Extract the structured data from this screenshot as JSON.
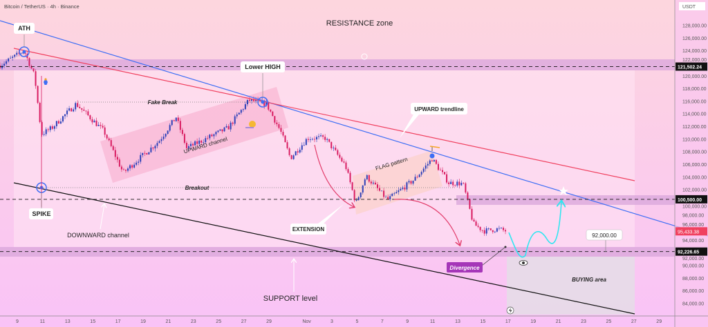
{
  "header": {
    "symbol_title": "Bitcoin / TetherUS · 4h · Binance",
    "currency": "USDT"
  },
  "colors": {
    "up": "#2b3fb8",
    "down": "#d81b60",
    "blue_line": "#3d6ef5",
    "red_line": "#f0405f",
    "black_line": "#111111",
    "cyan_path": "#2ee6f0",
    "band": "#dba8dc",
    "bg_top": "#fdd6de",
    "bg_bottom": "#f9c3f7"
  },
  "chart_data": {
    "type": "candlestick",
    "timeframe": "4h",
    "ylim": [
      83000,
      129500
    ],
    "y_ticks": [
      128000,
      126000,
      124000,
      122000,
      120000,
      118000,
      116000,
      114000,
      112000,
      110000,
      108000,
      106000,
      104000,
      102000,
      100000,
      98000,
      96000,
      94000,
      92000,
      90000,
      88000,
      86000,
      84000
    ],
    "y_tick_labels": [
      "128,000.00",
      "126,000.00",
      "124,000.00",
      "122,000.00",
      "120,000.00",
      "118,000.00",
      "116,000.00",
      "114,000.00",
      "112,000.00",
      "110,000.00",
      "108,000.00",
      "106,000.00",
      "104,000.00",
      "102,000.00",
      "100,000.00",
      "98,000.00",
      "96,000.00",
      "94,000.00",
      "92,000.00",
      "90,000.00",
      "88,000.00",
      "86,000.00",
      "84,000.00"
    ],
    "x_ticks": [
      {
        "date": "10-09",
        "label": "9"
      },
      {
        "date": "10-11",
        "label": "11"
      },
      {
        "date": "10-13",
        "label": "13"
      },
      {
        "date": "10-15",
        "label": "15"
      },
      {
        "date": "10-17",
        "label": "17"
      },
      {
        "date": "10-19",
        "label": "19"
      },
      {
        "date": "10-21",
        "label": "21"
      },
      {
        "date": "10-23",
        "label": "23"
      },
      {
        "date": "10-25",
        "label": "25"
      },
      {
        "date": "10-27",
        "label": "27"
      },
      {
        "date": "10-29",
        "label": "29"
      },
      {
        "date": "11-01",
        "label": "Nov"
      },
      {
        "date": "11-03",
        "label": "3"
      },
      {
        "date": "11-05",
        "label": "5"
      },
      {
        "date": "11-07",
        "label": "7"
      },
      {
        "date": "11-09",
        "label": "9"
      },
      {
        "date": "11-11",
        "label": "11"
      },
      {
        "date": "11-13",
        "label": "13"
      },
      {
        "date": "11-15",
        "label": "15"
      },
      {
        "date": "11-17",
        "label": "17"
      },
      {
        "date": "11-19",
        "label": "19"
      },
      {
        "date": "11-21",
        "label": "21"
      },
      {
        "date": "11-23",
        "label": "23"
      },
      {
        "date": "11-25",
        "label": "25"
      },
      {
        "date": "11-27",
        "label": "27"
      },
      {
        "date": "11-29",
        "label": "29"
      }
    ],
    "price_path": [
      [
        "10-07T15",
        121700
      ],
      [
        "10-09T13",
        124000
      ],
      [
        "10-10T09",
        120000
      ],
      [
        "10-10T22",
        110800
      ],
      [
        "10-11T18",
        111800
      ],
      [
        "10-13T16",
        115600
      ],
      [
        "10-15T21",
        111300
      ],
      [
        "10-17T10",
        104700
      ],
      [
        "10-20T06",
        109700
      ],
      [
        "10-21T15",
        113500
      ],
      [
        "10-22T11",
        108600
      ],
      [
        "10-25T18",
        111800
      ],
      [
        "10-27T10",
        116200
      ],
      [
        "10-28T19",
        115600
      ],
      [
        "10-29T22",
        111300
      ],
      [
        "10-30T17",
        107000
      ],
      [
        "11-01T02",
        110200
      ],
      [
        "11-02T11",
        110200
      ],
      [
        "11-04T02",
        105800
      ],
      [
        "11-04T22",
        99800
      ],
      [
        "11-05T17",
        104200
      ],
      [
        "11-07T10",
        100400
      ],
      [
        "11-09T14",
        103700
      ],
      [
        "11-10T23",
        106900
      ],
      [
        "11-12T07",
        103100
      ],
      [
        "11-13T10",
        103000
      ],
      [
        "11-14T06",
        96600
      ],
      [
        "11-15T02",
        95500
      ],
      [
        "11-16T05",
        95800
      ],
      [
        "11-16T22",
        95433
      ]
    ],
    "levels": [
      {
        "price": 121502.24,
        "label": "121,502.24"
      },
      {
        "price": 100500.0,
        "label": "100,500.00"
      },
      {
        "price": 92226.65,
        "label": "92,226.65"
      }
    ],
    "current_price": {
      "price": 95433.38,
      "label": "95,433.38"
    },
    "target_label": "92,000.00"
  },
  "annotations": {
    "ath": "ATH",
    "lower_high": "Lower HIGH",
    "spike": "SPIKE",
    "fake_break": "Fake Break",
    "upward_channel": "UPWARD channel",
    "breakout": "Breakout",
    "upward_trendline": "UPWARD trendline",
    "flag_pattern": "FLAG pattern",
    "extension": "EXTENSION",
    "downward_channel": "DOWNWARD channel",
    "resistance_zone": "RESISTANCE zone",
    "support_level": "SUPPORT level",
    "divergence": "Divergence",
    "buying_area": "BUYING area"
  }
}
